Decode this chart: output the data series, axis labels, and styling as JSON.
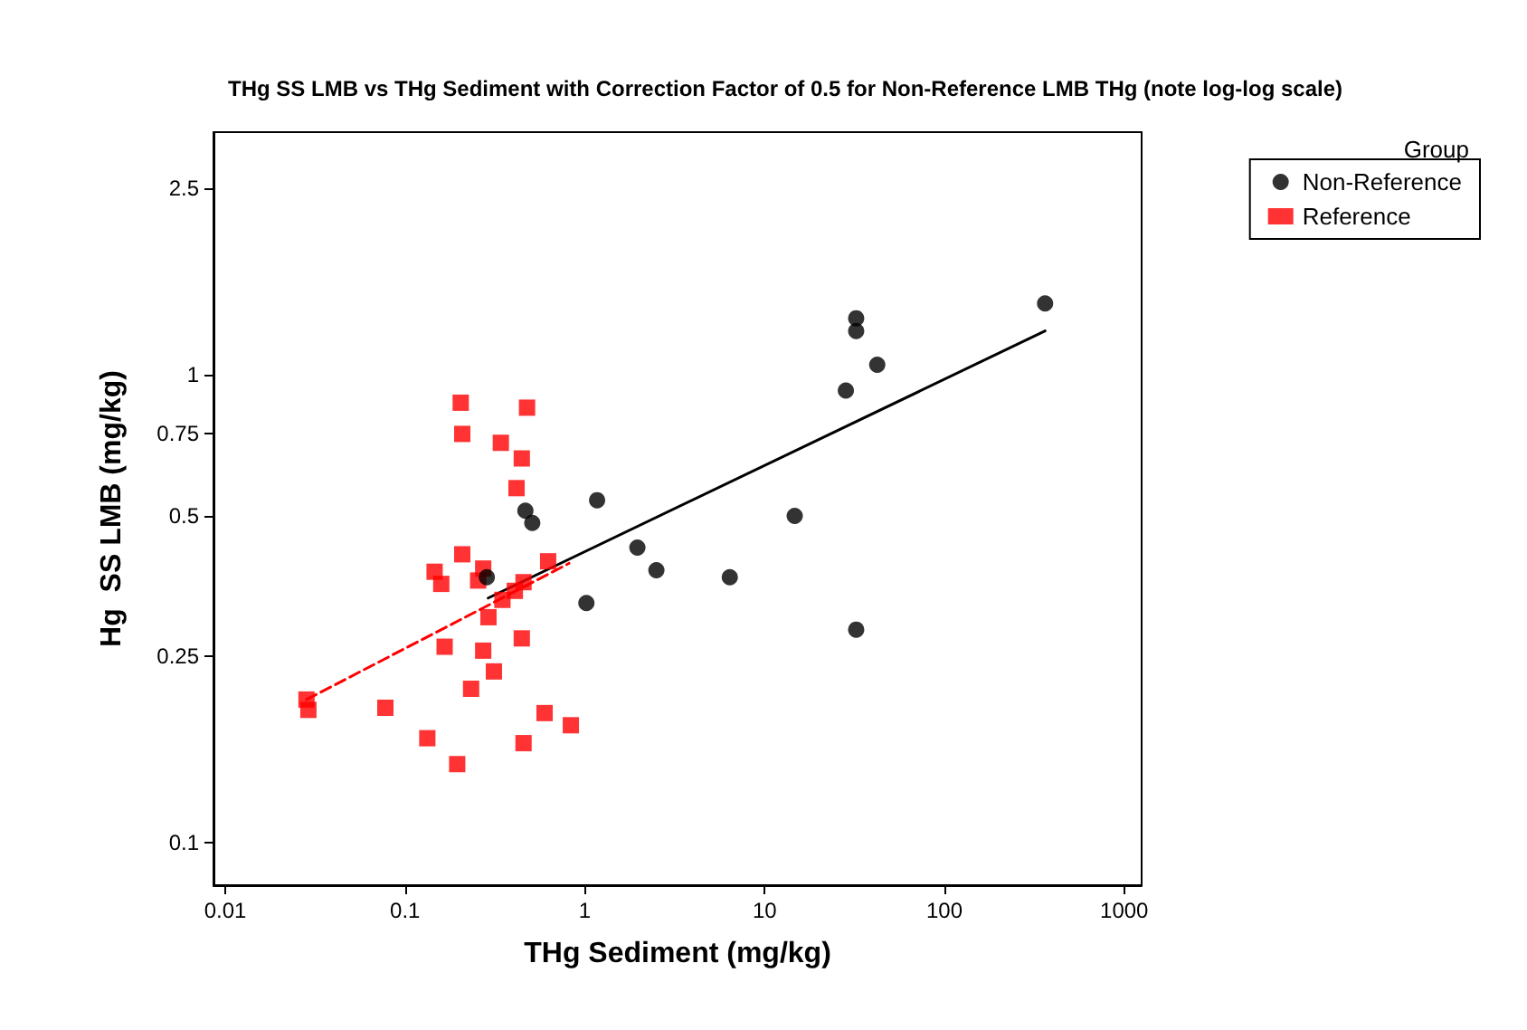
{
  "chart_data": {
    "type": "scatter",
    "title": "THg SS LMB vs THg Sediment with Correction Factor of 0.5 for Non-Reference LMB THg (note log-log scale)",
    "xlabel": "THg Sediment (mg/kg)",
    "ylabel": "Hg  SS LMB (mg/kg)",
    "legend_title": "Group",
    "legend": "top right",
    "grid": false,
    "log": "xy",
    "xlim": [
      0.0086,
      1250
    ],
    "xticks": [
      0.01,
      0.1,
      1,
      10,
      100,
      1000
    ],
    "ylim": [
      0.081,
      3.3
    ],
    "yticks": [
      0.1,
      0.25,
      0.5,
      0.75,
      1,
      2.5
    ],
    "series": [
      {
        "name": "Non-Reference",
        "color": "#000000",
        "marker": "circle",
        "x": [
          0.285,
          0.467,
          0.51,
          1.02,
          1.17,
          1.96,
          2.5,
          6.4,
          14.7,
          28.3,
          32.3,
          32.3,
          42.3,
          32.3,
          363
        ],
        "values": [
          0.369,
          0.512,
          0.482,
          0.325,
          0.539,
          0.427,
          0.382,
          0.369,
          0.499,
          0.925,
          1.24,
          1.32,
          1.05,
          0.285,
          1.42
        ]
      },
      {
        "name": "Reference",
        "color": "#ff0000",
        "marker": "square",
        "x": [
          0.204,
          0.477,
          0.208,
          0.341,
          0.446,
          0.417,
          0.208,
          0.146,
          0.159,
          0.272,
          0.255,
          0.625,
          0.456,
          0.408,
          0.348,
          0.291,
          0.166,
          0.446,
          0.272,
          0.312,
          0.233,
          0.0283,
          0.029,
          0.0777,
          0.597,
          0.836,
          0.133,
          0.456,
          0.195
        ],
        "values": [
          0.871,
          0.85,
          0.747,
          0.715,
          0.662,
          0.572,
          0.413,
          0.379,
          0.357,
          0.385,
          0.363,
          0.399,
          0.36,
          0.345,
          0.33,
          0.303,
          0.262,
          0.273,
          0.257,
          0.232,
          0.213,
          0.202,
          0.192,
          0.194,
          0.189,
          0.178,
          0.167,
          0.163,
          0.147
        ]
      },
      {
        "type": "line",
        "color": "#000000",
        "line_style": "solid",
        "x": [
          0.29,
          363
        ],
        "values": [
          0.333,
          1.24
        ]
      },
      {
        "type": "line",
        "color": "#ff0000",
        "line_style": "dashed",
        "x": [
          0.0283,
          0.817
        ],
        "values": [
          0.202,
          0.395
        ]
      }
    ]
  }
}
